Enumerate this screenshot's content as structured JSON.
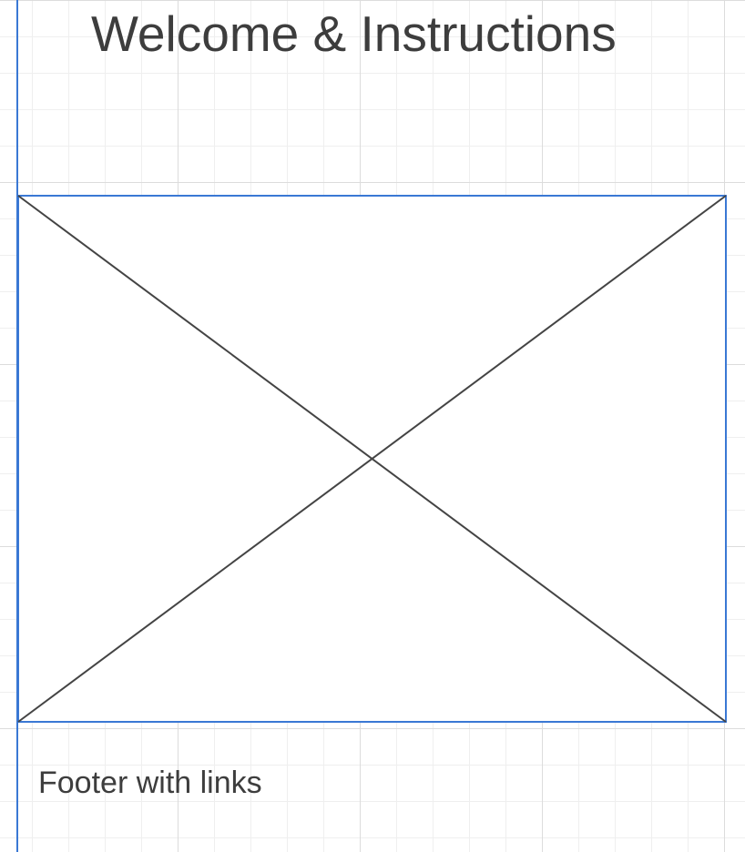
{
  "header": {
    "title": "Welcome & Instructions"
  },
  "image_placeholder": {
    "kind": "image-placeholder"
  },
  "footer": {
    "label": "Footer with links"
  },
  "colors": {
    "accent": "#3a78d4",
    "text": "#3d3d3d",
    "grid_major": "#dcdcdc",
    "grid_minor": "#efefef",
    "cross_lines": "#444444"
  }
}
